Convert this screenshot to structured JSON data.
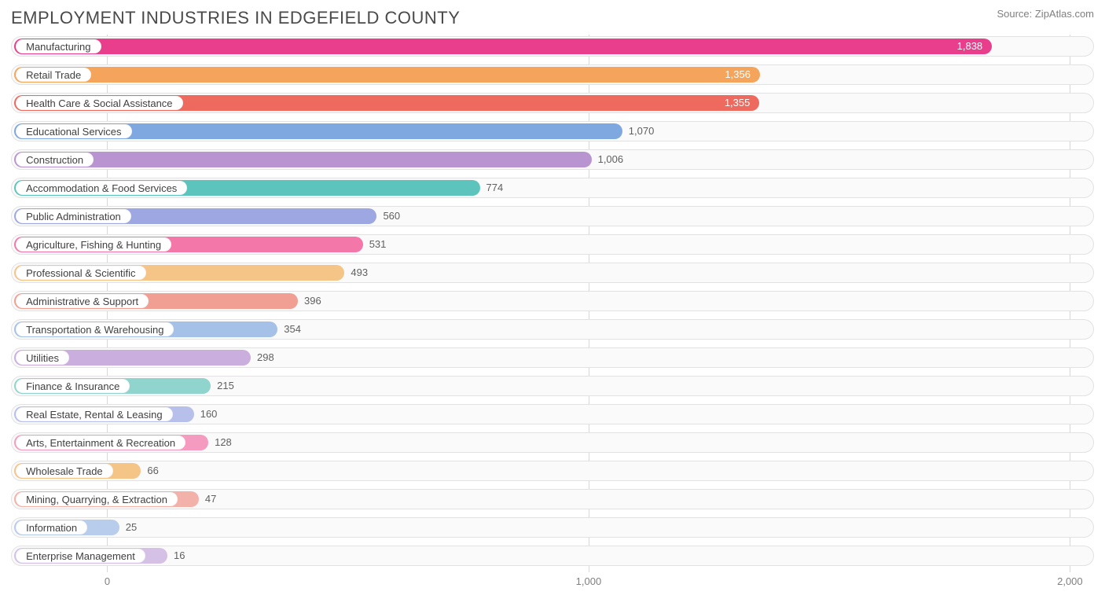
{
  "title": "EMPLOYMENT INDUSTRIES IN EDGEFIELD COUNTY",
  "source": "Source: ZipAtlas.com",
  "chart": {
    "type": "bar-horizontal",
    "x_min": -200,
    "x_max": 2050,
    "ticks": [
      0,
      1000,
      2000
    ],
    "tick_labels": [
      "0",
      "1,000",
      "2,000"
    ],
    "gridline_color": "#d8d8d8",
    "track_bg": "#fafafa",
    "track_border": "#e2e2e2",
    "text_color": "#404040",
    "value_outside_color": "#606060",
    "value_inside_color": "#ffffff",
    "label_origin": -190,
    "rows": [
      {
        "label": "Manufacturing",
        "value": 1838,
        "display": "1,838",
        "color": "#e83e8c",
        "value_inside": true,
        "label_pill_extent": 55
      },
      {
        "label": "Retail Trade",
        "value": 1356,
        "display": "1,356",
        "color": "#f5a55b",
        "value_inside": true,
        "label_pill_extent": 30
      },
      {
        "label": "Health Care & Social Assistance",
        "value": 1355,
        "display": "1,355",
        "color": "#ee6a5f",
        "value_inside": true,
        "label_pill_extent": 195
      },
      {
        "label": "Educational Services",
        "value": 1070,
        "display": "1,070",
        "color": "#7fa8e0",
        "value_inside": false,
        "label_pill_extent": 110
      },
      {
        "label": "Construction",
        "value": 1006,
        "display": "1,006",
        "color": "#b895d1",
        "value_inside": false,
        "label_pill_extent": 40
      },
      {
        "label": "Accommodation & Food Services",
        "value": 774,
        "display": "774",
        "color": "#5cc4bc",
        "value_inside": false,
        "label_pill_extent": 200
      },
      {
        "label": "Public Administration",
        "value": 560,
        "display": "560",
        "color": "#9da8e2",
        "value_inside": false,
        "label_pill_extent": 115
      },
      {
        "label": "Agriculture, Fishing & Hunting",
        "value": 531,
        "display": "531",
        "color": "#f377a8",
        "value_inside": false,
        "label_pill_extent": 175
      },
      {
        "label": "Professional & Scientific",
        "value": 493,
        "display": "493",
        "color": "#f5c487",
        "value_inside": false,
        "label_pill_extent": 140
      },
      {
        "label": "Administrative & Support",
        "value": 396,
        "display": "396",
        "color": "#f19e93",
        "value_inside": false,
        "label_pill_extent": 140
      },
      {
        "label": "Transportation & Warehousing",
        "value": 354,
        "display": "354",
        "color": "#a6c1e7",
        "value_inside": false,
        "label_pill_extent": 185
      },
      {
        "label": "Utilities",
        "value": 298,
        "display": "298",
        "color": "#c9aede",
        "value_inside": false,
        "label_pill_extent": -10
      },
      {
        "label": "Finance & Insurance",
        "value": 215,
        "display": "215",
        "color": "#8fd4cd",
        "value_inside": false,
        "label_pill_extent": 100
      },
      {
        "label": "Real Estate, Rental & Leasing",
        "value": 160,
        "display": "160",
        "color": "#b6c0ea",
        "value_inside": false,
        "label_pill_extent": 180
      },
      {
        "label": "Arts, Entertainment & Recreation",
        "value": 128,
        "display": "128",
        "color": "#f59bbf",
        "value_inside": false,
        "label_pill_extent": 210
      },
      {
        "label": "Wholesale Trade",
        "value": 66,
        "display": "66",
        "color": "#f5c487",
        "value_inside": false,
        "label_pill_extent": 70
      },
      {
        "label": "Mining, Quarrying, & Extraction",
        "value": 47,
        "display": "47",
        "color": "#f3b2a9",
        "value_inside": false,
        "label_pill_extent": 190
      },
      {
        "label": "Information",
        "value": 25,
        "display": "25",
        "color": "#b8cceb",
        "value_inside": false,
        "label_pill_extent": 25
      },
      {
        "label": "Enterprise Management",
        "value": 16,
        "display": "16",
        "color": "#d5c1e5",
        "value_inside": false,
        "label_pill_extent": 125
      }
    ]
  }
}
